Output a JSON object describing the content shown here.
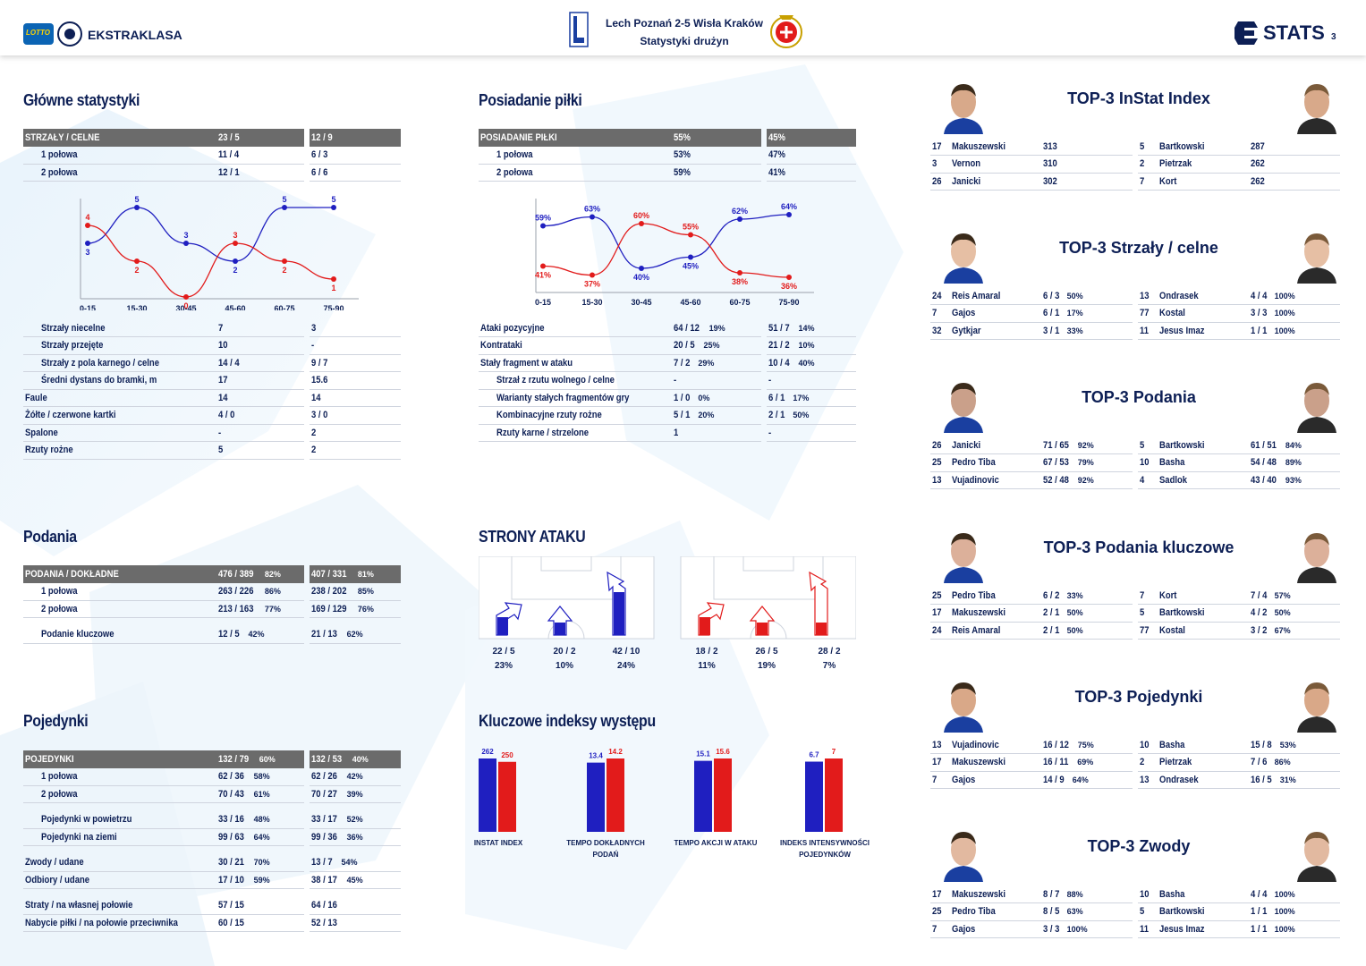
{
  "header": {
    "brand": "EKSTRAKLASA",
    "lotto": "LOTTO",
    "match": "Lech Poznań 2-5 Wisła Kraków",
    "subtitle": "Statystyki drużyn",
    "stats_logo": "STATS",
    "page_number": "3",
    "colors": {
      "home": "#1f1fc0",
      "away": "#e21b1b",
      "header_bar": "#6b6b6b",
      "navy": "#0d1f55"
    }
  },
  "main_stats": {
    "title": "Główne statystyki",
    "header": {
      "label": "STRZAŁY / CELNE",
      "home": "23 / 5",
      "away": "12 / 9"
    },
    "rows": [
      {
        "label": "1 połowa",
        "home": "11 / 4",
        "away": "6 / 3"
      },
      {
        "label": "2 połowa",
        "home": "12 / 1",
        "away": "6 / 6"
      }
    ],
    "rows2": [
      {
        "label": "Strzały niecelne",
        "home": "7",
        "away": "3",
        "indent": true
      },
      {
        "label": "Strzały przejęte",
        "home": "10",
        "away": "-",
        "indent": true
      },
      {
        "label": "Strzały z pola karnego / celne",
        "home": "14 / 4",
        "away": "9 / 7",
        "indent": true
      },
      {
        "label": "Średni dystans do bramki, m",
        "home": "17",
        "away": "15.6",
        "indent": true
      },
      {
        "label": "Faule",
        "home": "14",
        "away": "14"
      },
      {
        "label": "Żółte / czerwone kartki",
        "home": "4 / 0",
        "away": "3 / 0"
      },
      {
        "label": "Spalone",
        "home": "-",
        "away": "2"
      },
      {
        "label": "Rzuty rożne",
        "home": "5",
        "away": "2"
      }
    ]
  },
  "possession": {
    "title": "Posiadanie piłki",
    "header": {
      "label": "POSIADANIE PIŁKI",
      "home": "55%",
      "away": "45%"
    },
    "rows": [
      {
        "label": "1 połowa",
        "home": "53%",
        "away": "47%"
      },
      {
        "label": "2 połowa",
        "home": "59%",
        "away": "41%"
      }
    ],
    "rows2": [
      {
        "label": "Ataki pozycyjne",
        "home": "64 / 12",
        "home_pct": "19%",
        "away": "51 / 7",
        "away_pct": "14%"
      },
      {
        "label": "Kontrataki",
        "home": "20 / 5",
        "home_pct": "25%",
        "away": "21 / 2",
        "away_pct": "10%"
      },
      {
        "label": "Stały fragment w ataku",
        "home": "7 / 2",
        "home_pct": "29%",
        "away": "10 / 4",
        "away_pct": "40%"
      },
      {
        "label": "Strzał z rzutu wolnego / celne",
        "home": "-",
        "home_pct": "",
        "away": "-",
        "away_pct": "",
        "indent": true
      },
      {
        "label": "Warianty stałych fragmentów gry",
        "home": "1 / 0",
        "home_pct": "0%",
        "away": "6 / 1",
        "away_pct": "17%",
        "indent": true
      },
      {
        "label": "Kombinacyjne rzuty rożne",
        "home": "5 / 1",
        "home_pct": "20%",
        "away": "2 / 1",
        "away_pct": "50%",
        "indent": true
      },
      {
        "label": "Rzuty karne / strzelone",
        "home": "1",
        "home_pct": "",
        "away": "-",
        "away_pct": "",
        "indent": true
      }
    ]
  },
  "chart_data": [
    {
      "type": "line",
      "categories": [
        "0-15",
        "15-30",
        "30-45",
        "45-60",
        "60-75",
        "75-90"
      ],
      "series": [
        {
          "values": [
            3,
            5,
            3,
            2,
            5,
            5
          ],
          "color": "#1f1fc0"
        },
        {
          "values": [
            4,
            2,
            0,
            3,
            2,
            1
          ],
          "color": "#e21b1b"
        }
      ],
      "ylim": [
        0,
        5
      ],
      "point_labels": true
    },
    {
      "type": "line",
      "categories": [
        "0-15",
        "15-30",
        "30-45",
        "45-60",
        "60-75",
        "75-90"
      ],
      "series": [
        {
          "values": [
            59,
            63,
            40,
            45,
            62,
            64
          ],
          "color": "#1f1fc0",
          "labels": [
            "59%",
            "63%",
            "40%",
            "45%",
            "62%",
            "64%"
          ]
        },
        {
          "values": [
            41,
            37,
            60,
            55,
            38,
            36
          ],
          "color": "#e21b1b",
          "labels": [
            "41%",
            "37%",
            "60%",
            "55%",
            "38%",
            "36%"
          ]
        }
      ],
      "ylim": [
        30,
        70
      ]
    },
    {
      "type": "bar",
      "title": "Kluczowe indeksy występu",
      "categories": [
        "INSTAT INDEX",
        "TEMPO DOKŁADNYCH PODAŃ",
        "TEMPO AKCJI W ATAKU",
        "INDEKS INTENSYWNOŚCI POJEDYNKÓW"
      ],
      "series": [
        {
          "values": [
            262,
            13.4,
            15.1,
            6.7
          ],
          "color": "#1f1fc0",
          "labels": [
            "262",
            "13.4",
            "15.1",
            "6.7"
          ]
        },
        {
          "values": [
            250,
            14.2,
            15.6,
            7
          ],
          "color": "#e21b1b",
          "labels": [
            "250",
            "14.2",
            "15.6",
            "7"
          ]
        }
      ]
    }
  ],
  "passes": {
    "title": "Podania",
    "header": {
      "label": "PODANIA / DOKŁADNE",
      "home": "476 / 389",
      "home_pct": "82%",
      "away": "407 / 331",
      "away_pct": "81%"
    },
    "rows": [
      {
        "label": "1 połowa",
        "home": "263 / 226",
        "home_pct": "86%",
        "away": "238 / 202",
        "away_pct": "85%"
      },
      {
        "label": "2 połowa",
        "home": "213 / 163",
        "home_pct": "77%",
        "away": "169 / 129",
        "away_pct": "76%"
      }
    ],
    "key": {
      "label": "Podanie kluczowe",
      "home": "12 / 5",
      "home_pct": "42%",
      "away": "21 / 13",
      "away_pct": "62%"
    }
  },
  "duels": {
    "title": "Pojedynki",
    "header": {
      "label": "POJEDYNKI",
      "home": "132 / 79",
      "home_pct": "60%",
      "away": "132 / 53",
      "away_pct": "40%"
    },
    "groups": [
      [
        {
          "label": "1 połowa",
          "home": "62 / 36",
          "home_pct": "58%",
          "away": "62 / 26",
          "away_pct": "42%",
          "indent": true
        },
        {
          "label": "2 połowa",
          "home": "70 / 43",
          "home_pct": "61%",
          "away": "70 / 27",
          "away_pct": "39%",
          "indent": true
        }
      ],
      [
        {
          "label": "Pojedynki w powietrzu",
          "home": "33 / 16",
          "home_pct": "48%",
          "away": "33 / 17",
          "away_pct": "52%",
          "indent": true
        },
        {
          "label": "Pojedynki na ziemi",
          "home": "99 / 63",
          "home_pct": "64%",
          "away": "99 / 36",
          "away_pct": "36%",
          "indent": true
        }
      ],
      [
        {
          "label": "Zwody / udane",
          "home": "30 / 21",
          "home_pct": "70%",
          "away": "13 / 7",
          "away_pct": "54%"
        },
        {
          "label": "Odbiory / udane",
          "home": "17 / 10",
          "home_pct": "59%",
          "away": "38 / 17",
          "away_pct": "45%"
        }
      ],
      [
        {
          "label": "Straty / na własnej połowie",
          "home": "57 / 15",
          "home_pct": "",
          "away": "64 / 16",
          "away_pct": ""
        },
        {
          "label": "Nabycie piłki / na połowie przeciwnika",
          "home": "60 / 15",
          "home_pct": "",
          "away": "52 / 13",
          "away_pct": ""
        }
      ]
    ]
  },
  "attack": {
    "title": "STRONY ATAKU",
    "home": [
      {
        "value": "22 / 5",
        "pct": "23%",
        "fill": 0.23
      },
      {
        "value": "20 / 2",
        "pct": "10%",
        "fill": 0.1
      },
      {
        "value": "42 / 10",
        "pct": "24%",
        "fill": 0.24
      }
    ],
    "away": [
      {
        "value": "18 / 2",
        "pct": "11%",
        "fill": 0.11
      },
      {
        "value": "26 / 5",
        "pct": "19%",
        "fill": 0.19
      },
      {
        "value": "28 / 2",
        "pct": "7%",
        "fill": 0.07
      }
    ]
  },
  "key_indexes": {
    "title": "Kluczowe indeksy występu",
    "labels": [
      [
        "INSTAT INDEX",
        ""
      ],
      [
        "TEMPO DOKŁADNYCH",
        "PODAŃ"
      ],
      [
        "TEMPO AKCJI W ATAKU",
        ""
      ],
      [
        "INDEKS INTENSYWNOŚCI",
        "POJEDYNKÓW"
      ]
    ]
  },
  "top3": [
    {
      "title": "TOP-3 InStat Index",
      "home": [
        {
          "num": "17",
          "name": "Makuszewski",
          "val": "313",
          "pct": ""
        },
        {
          "num": "3",
          "name": "Vernon",
          "val": "310",
          "pct": ""
        },
        {
          "num": "26",
          "name": "Janicki",
          "val": "302",
          "pct": ""
        }
      ],
      "away": [
        {
          "num": "5",
          "name": "Bartkowski",
          "val": "287",
          "pct": ""
        },
        {
          "num": "2",
          "name": "Pietrzak",
          "val": "262",
          "pct": ""
        },
        {
          "num": "7",
          "name": "Kort",
          "val": "262",
          "pct": ""
        }
      ]
    },
    {
      "title": "TOP-3 Strzały / celne",
      "home": [
        {
          "num": "24",
          "name": "Reis Amaral",
          "val": "6 / 3",
          "pct": "50%"
        },
        {
          "num": "7",
          "name": "Gajos",
          "val": "6 / 1",
          "pct": "17%"
        },
        {
          "num": "32",
          "name": "Gytkjar",
          "val": "3 / 1",
          "pct": "33%"
        }
      ],
      "away": [
        {
          "num": "13",
          "name": "Ondrasek",
          "val": "4 / 4",
          "pct": "100%"
        },
        {
          "num": "77",
          "name": "Kostal",
          "val": "3 / 3",
          "pct": "100%"
        },
        {
          "num": "11",
          "name": "Jesus Imaz",
          "val": "1 / 1",
          "pct": "100%"
        }
      ]
    },
    {
      "title": "TOP-3 Podania",
      "home": [
        {
          "num": "26",
          "name": "Janicki",
          "val": "71 / 65",
          "pct": "92%"
        },
        {
          "num": "25",
          "name": "Pedro Tiba",
          "val": "67 / 53",
          "pct": "79%"
        },
        {
          "num": "13",
          "name": "Vujadinovic",
          "val": "52 / 48",
          "pct": "92%"
        }
      ],
      "away": [
        {
          "num": "5",
          "name": "Bartkowski",
          "val": "61 / 51",
          "pct": "84%"
        },
        {
          "num": "10",
          "name": "Basha",
          "val": "54 / 48",
          "pct": "89%"
        },
        {
          "num": "4",
          "name": "Sadlok",
          "val": "43 / 40",
          "pct": "93%"
        }
      ]
    },
    {
      "title": "TOP-3 Podania kluczowe",
      "home": [
        {
          "num": "25",
          "name": "Pedro Tiba",
          "val": "6 / 2",
          "pct": "33%"
        },
        {
          "num": "17",
          "name": "Makuszewski",
          "val": "2 / 1",
          "pct": "50%"
        },
        {
          "num": "24",
          "name": "Reis Amaral",
          "val": "2 / 1",
          "pct": "50%"
        }
      ],
      "away": [
        {
          "num": "7",
          "name": "Kort",
          "val": "7 / 4",
          "pct": "57%"
        },
        {
          "num": "5",
          "name": "Bartkowski",
          "val": "4 / 2",
          "pct": "50%"
        },
        {
          "num": "77",
          "name": "Kostal",
          "val": "3 / 2",
          "pct": "67%"
        }
      ]
    },
    {
      "title": "TOP-3 Pojedynki",
      "home": [
        {
          "num": "13",
          "name": "Vujadinovic",
          "val": "16 / 12",
          "pct": "75%"
        },
        {
          "num": "17",
          "name": "Makuszewski",
          "val": "16 / 11",
          "pct": "69%"
        },
        {
          "num": "7",
          "name": "Gajos",
          "val": "14 / 9",
          "pct": "64%"
        }
      ],
      "away": [
        {
          "num": "10",
          "name": "Basha",
          "val": "15 / 8",
          "pct": "53%"
        },
        {
          "num": "2",
          "name": "Pietrzak",
          "val": "7 / 6",
          "pct": "86%"
        },
        {
          "num": "13",
          "name": "Ondrasek",
          "val": "16 / 5",
          "pct": "31%"
        }
      ]
    },
    {
      "title": "TOP-3 Zwody",
      "home": [
        {
          "num": "17",
          "name": "Makuszewski",
          "val": "8 / 7",
          "pct": "88%"
        },
        {
          "num": "25",
          "name": "Pedro Tiba",
          "val": "8 / 5",
          "pct": "63%"
        },
        {
          "num": "7",
          "name": "Gajos",
          "val": "3 / 3",
          "pct": "100%"
        }
      ],
      "away": [
        {
          "num": "10",
          "name": "Basha",
          "val": "4 / 4",
          "pct": "100%"
        },
        {
          "num": "5",
          "name": "Bartkowski",
          "val": "1 / 1",
          "pct": "100%"
        },
        {
          "num": "11",
          "name": "Jesus Imaz",
          "val": "1 / 1",
          "pct": "100%"
        }
      ]
    }
  ]
}
